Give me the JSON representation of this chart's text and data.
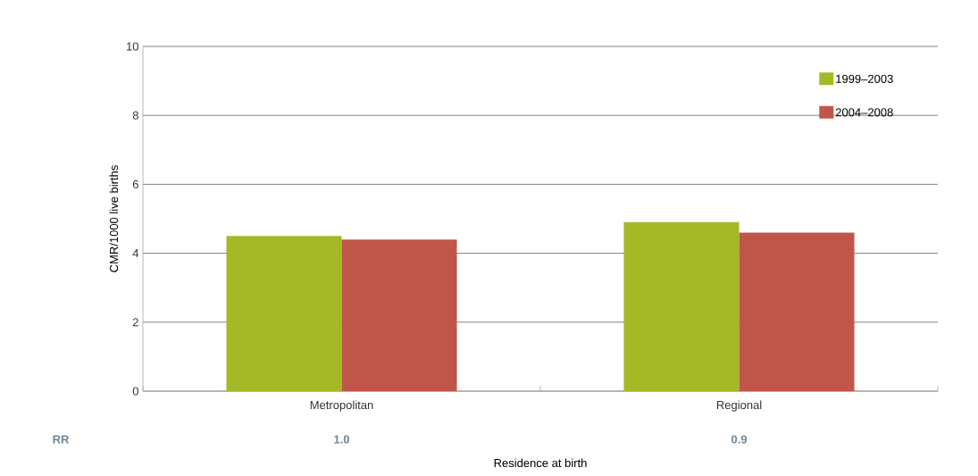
{
  "chart_data": {
    "type": "bar",
    "xlabel": "Residence at birth",
    "ylabel": "CMR/1000 live births",
    "categories": [
      "Metropolitan",
      "Regional"
    ],
    "series": [
      {
        "name": "1999–2003",
        "color": "#a5b826",
        "values": [
          4.5,
          4.9
        ]
      },
      {
        "name": "2004–2008",
        "color": "#c0564a",
        "values": [
          4.4,
          4.6
        ]
      }
    ],
    "ylim": [
      0,
      10
    ],
    "yticks": [
      0,
      2,
      4,
      6,
      8,
      10
    ],
    "grid": "y",
    "legend": "top right",
    "annotations": [
      "RR",
      "1.0",
      "0.9"
    ]
  }
}
